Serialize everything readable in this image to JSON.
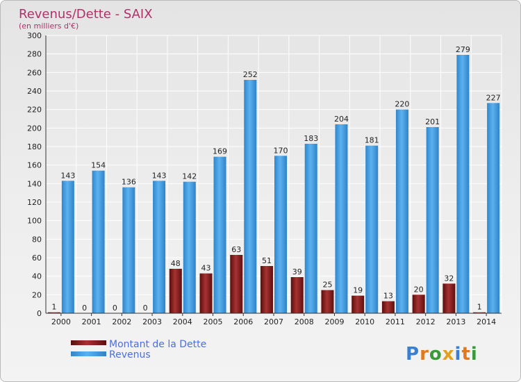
{
  "title": "Revenus/Dette - SAIX",
  "subtitle": "(en milliers d'€)",
  "logo_text": "Proxiti",
  "colors": {
    "title": "#b0306a",
    "legend_text": "#4b6ee0",
    "dette": "#7a1515",
    "revenus": "#3f9de0"
  },
  "chart_data": {
    "type": "bar",
    "title": "Revenus/Dette - SAIX",
    "subtitle": "(en milliers d'€)",
    "categories": [
      "2000",
      "2001",
      "2002",
      "2003",
      "2004",
      "2005",
      "2006",
      "2007",
      "2008",
      "2009",
      "2010",
      "2011",
      "2012",
      "2013",
      "2014"
    ],
    "series": [
      {
        "name": "Montant de la Dette",
        "values": [
          1,
          0,
          0,
          0,
          48,
          43,
          63,
          51,
          39,
          25,
          19,
          13,
          20,
          32,
          1
        ]
      },
      {
        "name": "Revenus",
        "values": [
          143,
          154,
          136,
          143,
          142,
          169,
          252,
          170,
          183,
          204,
          181,
          220,
          201,
          279,
          227
        ]
      }
    ],
    "ylim": [
      0,
      300
    ],
    "ytick_step": 20,
    "grid": true,
    "legend": "bottom-left"
  }
}
